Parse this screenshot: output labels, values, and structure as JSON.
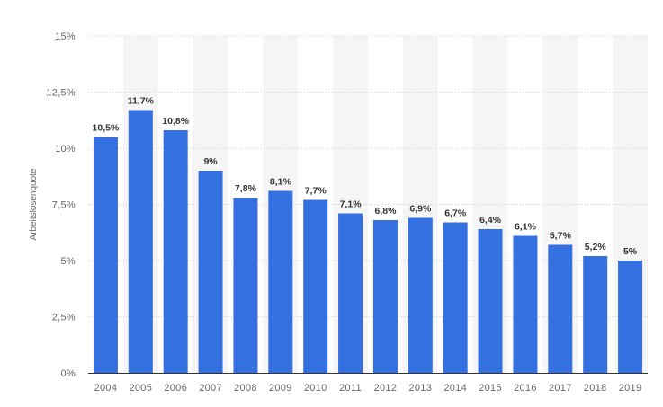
{
  "chart_data": {
    "type": "bar",
    "title": "",
    "xlabel": "",
    "ylabel": "Arbeitslosenquote",
    "categories": [
      "2004",
      "2005",
      "2006",
      "2007",
      "2008",
      "2009",
      "2010",
      "2011",
      "2012",
      "2013",
      "2014",
      "2015",
      "2016",
      "2017",
      "2018",
      "2019"
    ],
    "values": [
      10.5,
      11.7,
      10.8,
      9,
      7.8,
      8.1,
      7.7,
      7.1,
      6.8,
      6.9,
      6.7,
      6.4,
      6.1,
      5.7,
      5.2,
      5
    ],
    "data_labels": [
      "10,5%",
      "11,7%",
      "10,8%",
      "9%",
      "7,8%",
      "8,1%",
      "7,7%",
      "7,1%",
      "6,8%",
      "6,9%",
      "6,7%",
      "6,4%",
      "6,1%",
      "5,7%",
      "5,2%",
      "5%"
    ],
    "ylim": [
      0,
      15
    ],
    "yticks": [
      0,
      2.5,
      5,
      7.5,
      10,
      12.5,
      15
    ],
    "ytick_labels": [
      "0%",
      "2,5%",
      "5%",
      "7,5%",
      "10%",
      "12,5%",
      "15%"
    ],
    "grid": true,
    "bar_color": "#3570e0",
    "band_color": "#f5f5f5"
  }
}
